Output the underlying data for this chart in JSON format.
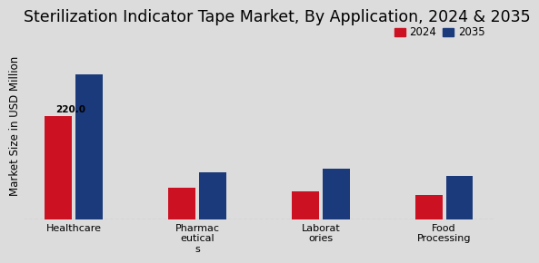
{
  "title": "Sterilization Indicator Tape Market, By Application, 2024 & 2035",
  "ylabel": "Market Size in USD Million",
  "categories": [
    "Healthcare",
    "Pharmac\neutical\ns",
    "Laborat\nories",
    "Food\nProcessing"
  ],
  "values_2024": [
    220.0,
    68,
    60,
    52
  ],
  "values_2035": [
    310,
    100,
    108,
    92
  ],
  "color_2024": "#cc1122",
  "color_2035": "#1a3a7c",
  "bar_annotation": "220.0",
  "background_color_top": "#d8d8d8",
  "background_color_bottom": "#e8e8e8",
  "ylim": [
    0,
    400
  ],
  "legend_labels": [
    "2024",
    "2035"
  ],
  "title_fontsize": 12.5,
  "ylabel_fontsize": 8.5,
  "tick_fontsize": 8
}
